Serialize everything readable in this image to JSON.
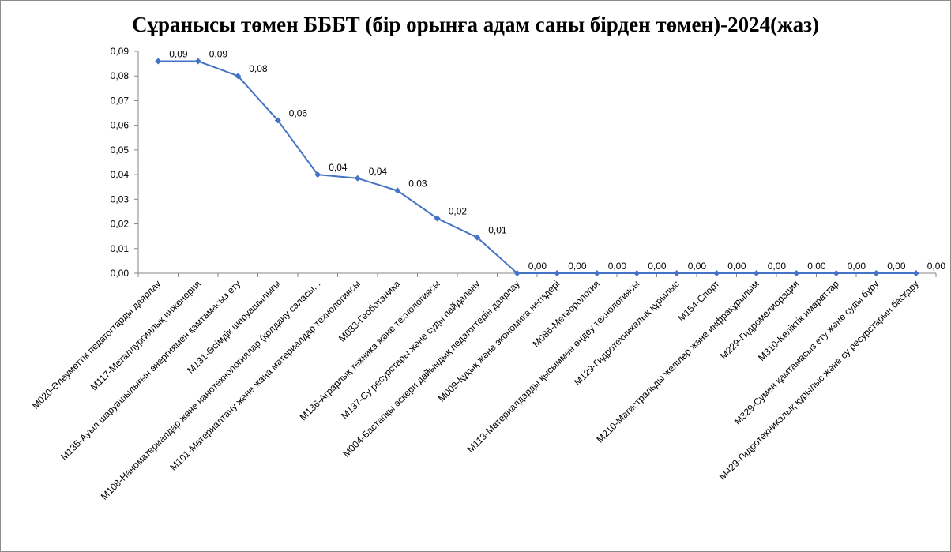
{
  "chart_data": {
    "type": "line",
    "title": "Сұранысы төмен БББТ (бір орынға адам саны бірден төмен)-2024(жаз)",
    "xlabel": "",
    "ylabel": "",
    "ylim": [
      0,
      0.09
    ],
    "yticks": [
      "0,00",
      "0,01",
      "0,02",
      "0,03",
      "0,04",
      "0,05",
      "0,06",
      "0,07",
      "0,08",
      "0,09"
    ],
    "grid": false,
    "legend": "none",
    "colors": {
      "line": "#4472C4",
      "marker": "#4472C4",
      "axis": "#868686"
    },
    "categories": [
      "M020-Әлеуметтік педагогтарды даярлау",
      "M117-Металлургиялық инженерия",
      "M135-Ауыл шаруашылығын энергиямен қамтамасыз ету",
      "M131-Өсімдік шаруашылығы",
      "M108-Наноматериалдар және нанотехнологиялар (қолдану саласы...",
      "M101-Материалтану және жаңа материалдар технологиясы",
      "M083-Геоботаника",
      "M136-Аграрлық техника және технологиясы",
      "M137-Су ресурстары және суды пайдалану",
      "M004-Бастапқы әскери дайындық педагогтерін даярлау",
      "M009-Құқық және экономика негіздері",
      "M086-Метеорология",
      "M113-Материалдарды қысыммен өңдеу технологиясы",
      "M129-Гидротехникалық құрылыс",
      "M154-Спорт",
      "M210-Магистральды желілер және инфрақұрылым",
      "M229-Гидромелиорация",
      "M310-Көліктік имараттар",
      "M329-Сумен қамтамасыз ету және суды бұру",
      "M429-Гидротехникалық құрылыс және су ресурстарын басқару"
    ],
    "values": [
      0.086,
      0.086,
      0.08,
      0.062,
      0.04,
      0.0385,
      0.0335,
      0.0222,
      0.0145,
      0,
      0,
      0,
      0,
      0,
      0,
      0,
      0,
      0,
      0,
      0
    ],
    "data_labels": [
      "0,09",
      "0,09",
      "0,08",
      "0,06",
      "0,04",
      "0,04",
      "0,03",
      "0,02",
      "0,01",
      "0,00",
      "0,00",
      "0,00",
      "0,00",
      "0,00",
      "0,00",
      "0,00",
      "0,00",
      "0,00",
      "0,00",
      "0,00"
    ]
  }
}
